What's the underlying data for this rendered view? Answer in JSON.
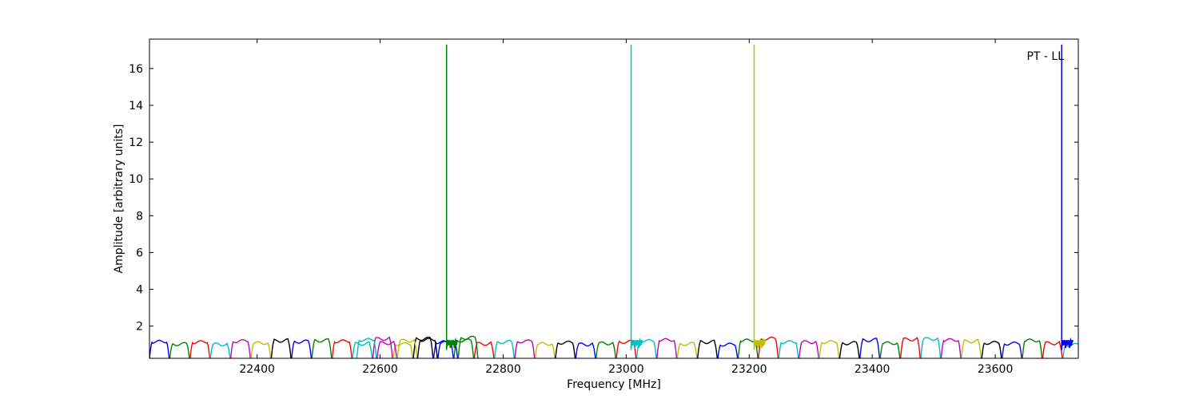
{
  "chart_data": {
    "type": "line",
    "title": "",
    "xlabel": "Frequency [MHz]",
    "ylabel": "Amplitude [arbitrary units]",
    "annotation": "PT - LL",
    "annotation_position": "top-right",
    "xlim": [
      22225,
      23735
    ],
    "ylim": [
      0.25,
      17.6
    ],
    "grid": false,
    "legend": "none",
    "x_ticks": [
      22400,
      22600,
      22800,
      23000,
      23200,
      23400,
      23600
    ],
    "x_tick_labels": [
      "22400",
      "22600",
      "22800",
      "23000",
      "23200",
      "23400",
      "23600"
    ],
    "y_ticks": [
      2,
      4,
      6,
      8,
      10,
      12,
      14,
      16
    ],
    "y_tick_labels": [
      "2",
      "4",
      "6",
      "8",
      "10",
      "12",
      "14",
      "16"
    ],
    "color_cycle": [
      "#0000ff",
      "#008000",
      "#ff0000",
      "#00bfbf",
      "#bf00bf",
      "#bfbf00",
      "#000000"
    ],
    "channel_bandwidth_mhz": 32,
    "channel_amplitude_typical": 1.15,
    "channel_amplitude_min": 0.25,
    "first_channel_start_mhz": 22225,
    "overlap_channel_range_mhz": [
      22550,
      22760
    ],
    "spikes": [
      {
        "x": 22708,
        "y": 17.3,
        "color": "#008000"
      },
      {
        "x": 23008,
        "y": 17.3,
        "color": "#00bfbf"
      },
      {
        "x": 23208,
        "y": 17.3,
        "color": "#bfbf00"
      },
      {
        "x": 23708,
        "y": 17.3,
        "color": "#0000ff"
      }
    ]
  }
}
